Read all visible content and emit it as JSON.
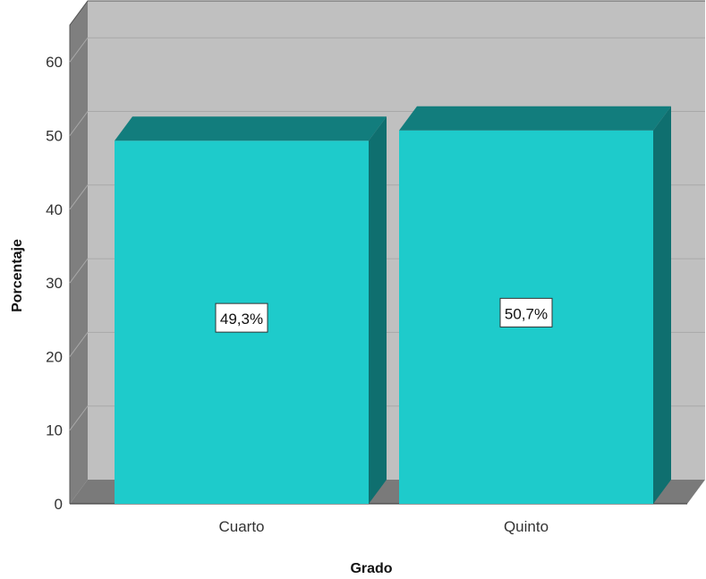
{
  "chart_data": {
    "type": "bar",
    "title": "",
    "xlabel": "Grado",
    "ylabel": "Porcentaje",
    "categories": [
      "Cuarto",
      "Quinto"
    ],
    "values": [
      49.3,
      50.7
    ],
    "data_labels": [
      "49,3%",
      "50,7%"
    ],
    "yticks": [
      "0",
      "10",
      "20",
      "30",
      "40",
      "50",
      "60"
    ],
    "ylim": [
      0,
      65
    ],
    "grid": true,
    "style": "3d",
    "colors": {
      "bar_front": "#1ecbcb",
      "bar_top": "#127d7d",
      "bar_side": "#0f6f6f",
      "back_wall": "#c0c0c0",
      "side_wall": "#7f7f7f",
      "floor": "#7a7a7a",
      "gridline": "#a8a8a8"
    }
  }
}
